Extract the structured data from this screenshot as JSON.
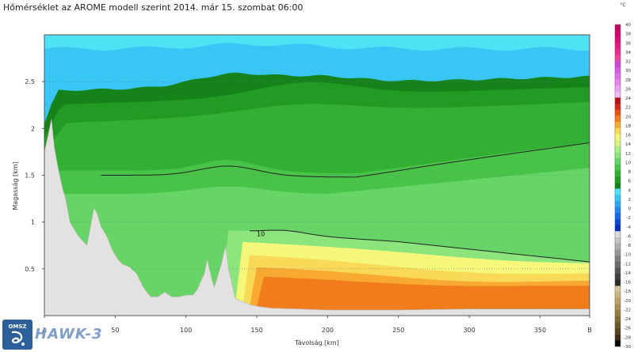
{
  "title": "Hőmérséklet az AROME modell szerint 2014. már 15. szombat 06:00",
  "logo": {
    "label": "OMSZ",
    "product": "HAWK-3"
  },
  "chart_data": {
    "type": "heatmap",
    "title": "Hőmérséklet az AROME modell szerint 2014. már 15. szombat 06:00",
    "xlabel": "Távolság [km]",
    "ylabel": "Magasság [km]",
    "xlim": [
      0,
      385
    ],
    "ylim": [
      0,
      3.0
    ],
    "x_ticks": [
      {
        "value": 0,
        "label": "A"
      },
      {
        "value": 50,
        "label": "50"
      },
      {
        "value": 100,
        "label": "100"
      },
      {
        "value": 150,
        "label": "150"
      },
      {
        "value": 200,
        "label": "200"
      },
      {
        "value": 250,
        "label": "250"
      },
      {
        "value": 300,
        "label": "300"
      },
      {
        "value": 350,
        "label": "350"
      },
      {
        "value": 385,
        "label": "B"
      }
    ],
    "y_ticks": [
      {
        "value": 0.5,
        "label": "0.5"
      },
      {
        "value": 1.0,
        "label": "1"
      },
      {
        "value": 1.5,
        "label": "1.5"
      },
      {
        "value": 2.0,
        "label": "2"
      },
      {
        "value": 2.5,
        "label": "2.5"
      }
    ],
    "grid": true,
    "contour_labels": [
      {
        "text": "10",
        "x": 150,
        "y": 0.85
      }
    ],
    "colorbar": {
      "unit": "°C",
      "min": -30,
      "max": 40,
      "step": 2,
      "colors": [
        "#000000",
        "#3a2d14",
        "#54431e",
        "#6b5628",
        "#806832",
        "#957a3f",
        "#a78d53",
        "#b8a067",
        "#c8b37f",
        "#d6c597",
        "#2a2a2a",
        "#404040",
        "#555555",
        "#6a6a6a",
        "#808080",
        "#969696",
        "#acacac",
        "#c4c4c4",
        "#dcdcdc",
        "#0a2fbf",
        "#0d47d6",
        "#1766e6",
        "#2287ee",
        "#2ea7f2",
        "#39c6f4",
        "#4fe2f5",
        "#15821a",
        "#239a23",
        "#33b033",
        "#48c348",
        "#66d466",
        "#8be47c",
        "#aaf08a",
        "#d8f584",
        "#f4f77a",
        "#f9d957",
        "#f8a932",
        "#f17c1b",
        "#e55315",
        "#d4271a",
        "#b5111c",
        "#f1b9f3",
        "#ee9ff0",
        "#e786ec",
        "#de6fe6",
        "#d55bde",
        "#cb47d4",
        "#ee3f9b",
        "#e82c8f",
        "#e11b82",
        "#d80e76",
        "#ce066b",
        "#c3005f"
      ],
      "labels": [
        "-30",
        "-28",
        "-26",
        "-24",
        "-22",
        "-20",
        "-18",
        "-16",
        "-14",
        "-12",
        "-10",
        "-8",
        "-6",
        "-4",
        "-2",
        "0",
        "2",
        "4",
        "6",
        "8",
        "10",
        "12",
        "14",
        "16",
        "18",
        "20",
        "22",
        "24",
        "26",
        "28",
        "30",
        "32",
        "34",
        "36",
        "38",
        "40"
      ]
    },
    "temperature_bands": [
      {
        "name": "",
        "value": -4,
        "color": "#4fe2f5"
      },
      {
        "name": "",
        "value": -2,
        "color": "#39c6f4"
      },
      {
        "name": "",
        "value": 0,
        "color": "#15821a"
      },
      {
        "name": "",
        "value": 2,
        "color": "#239a23"
      },
      {
        "name": "",
        "value": 4,
        "color": "#33b033"
      },
      {
        "name": "",
        "value": 6,
        "color": "#48c348"
      },
      {
        "name": "",
        "value": 8,
        "color": "#66d466"
      },
      {
        "name": "",
        "value": 10,
        "color": "#8be47c"
      },
      {
        "name": "",
        "value": 12,
        "color": "#f4f77a"
      },
      {
        "name": "",
        "value": 14,
        "color": "#f9d957"
      },
      {
        "name": "",
        "value": 16,
        "color": "#f8a932"
      },
      {
        "name": "",
        "value": 18,
        "color": "#f17c1b"
      }
    ],
    "terrain": {
      "color": "#e4e2e0",
      "points": [
        [
          0,
          1.75
        ],
        [
          3,
          1.95
        ],
        [
          5,
          2.1
        ],
        [
          7,
          1.8
        ],
        [
          10,
          1.55
        ],
        [
          13,
          1.35
        ],
        [
          15,
          1.25
        ],
        [
          18,
          1.0
        ],
        [
          20,
          0.95
        ],
        [
          24,
          0.85
        ],
        [
          27,
          0.8
        ],
        [
          30,
          0.75
        ],
        [
          32,
          0.9
        ],
        [
          35,
          1.15
        ],
        [
          37,
          1.1
        ],
        [
          40,
          0.95
        ],
        [
          44,
          0.85
        ],
        [
          48,
          0.7
        ],
        [
          52,
          0.6
        ],
        [
          55,
          0.55
        ],
        [
          60,
          0.52
        ],
        [
          65,
          0.45
        ],
        [
          70,
          0.3
        ],
        [
          75,
          0.2
        ],
        [
          80,
          0.2
        ],
        [
          85,
          0.25
        ],
        [
          90,
          0.2
        ],
        [
          95,
          0.2
        ],
        [
          100,
          0.22
        ],
        [
          105,
          0.22
        ],
        [
          108,
          0.28
        ],
        [
          110,
          0.35
        ],
        [
          113,
          0.45
        ],
        [
          115,
          0.6
        ],
        [
          118,
          0.4
        ],
        [
          120,
          0.3
        ],
        [
          125,
          0.55
        ],
        [
          128,
          0.75
        ],
        [
          130,
          0.5
        ],
        [
          133,
          0.3
        ],
        [
          135,
          0.18
        ],
        [
          140,
          0.15
        ],
        [
          145,
          0.12
        ],
        [
          150,
          0.1
        ],
        [
          160,
          0.08
        ],
        [
          200,
          0.06
        ],
        [
          250,
          0.06
        ],
        [
          300,
          0.07
        ],
        [
          350,
          0.07
        ],
        [
          385,
          0.07
        ]
      ]
    }
  }
}
